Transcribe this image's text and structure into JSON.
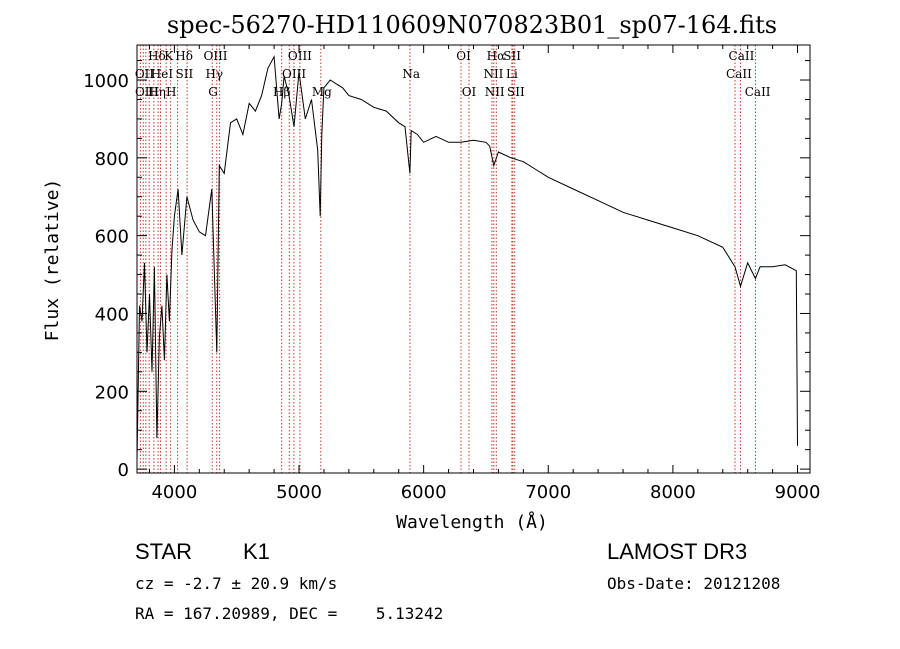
{
  "chart_data": {
    "type": "line",
    "title": "spec-56270-HD110609N070823B01_sp07-164.fits",
    "xlabel": "Wavelength (Å)",
    "ylabel": "Flux (relative)",
    "xlim": [
      3700,
      9100
    ],
    "ylim": [
      -10,
      1090
    ],
    "xticks": [
      4000,
      5000,
      6000,
      7000,
      8000,
      9000
    ],
    "yticks": [
      0,
      200,
      400,
      600,
      800,
      1000
    ],
    "grid": false,
    "series": [
      {
        "name": "flux",
        "x": [
          3700,
          3720,
          3740,
          3760,
          3780,
          3800,
          3820,
          3840,
          3860,
          3880,
          3900,
          3920,
          3940,
          3960,
          3980,
          4000,
          4030,
          4060,
          4100,
          4150,
          4200,
          4250,
          4300,
          4340,
          4360,
          4400,
          4450,
          4500,
          4550,
          4600,
          4650,
          4700,
          4750,
          4800,
          4840,
          4861,
          4880,
          4920,
          4960,
          5000,
          5050,
          5100,
          5150,
          5170,
          5183,
          5200,
          5250,
          5300,
          5350,
          5400,
          5500,
          5600,
          5700,
          5800,
          5850,
          5890,
          5900,
          5950,
          6000,
          6100,
          6200,
          6300,
          6400,
          6500,
          6530,
          6563,
          6600,
          6700,
          6800,
          6900,
          7000,
          7200,
          7400,
          7600,
          7800,
          8000,
          8200,
          8400,
          8498,
          8542,
          8600,
          8662,
          8700,
          8800,
          8900,
          8990,
          9000
        ],
        "y": [
          20,
          420,
          380,
          530,
          300,
          450,
          250,
          520,
          80,
          340,
          420,
          280,
          500,
          380,
          560,
          650,
          720,
          550,
          700,
          640,
          610,
          600,
          720,
          300,
          780,
          760,
          890,
          900,
          860,
          940,
          920,
          960,
          1030,
          1060,
          900,
          940,
          1010,
          960,
          880,
          1020,
          900,
          950,
          820,
          650,
          860,
          980,
          1000,
          990,
          980,
          960,
          950,
          930,
          920,
          890,
          880,
          760,
          870,
          860,
          840,
          855,
          840,
          840,
          845,
          840,
          830,
          780,
          815,
          800,
          790,
          770,
          750,
          720,
          690,
          660,
          640,
          620,
          600,
          570,
          520,
          470,
          530,
          490,
          520,
          520,
          525,
          510,
          60
        ]
      }
    ],
    "lines_top_row1": [
      "Hδ",
      "K",
      "Hδ",
      "OIII",
      "OIII",
      "OI",
      "Hα",
      "SII",
      "CaII"
    ],
    "lines_top_row2": [
      "OII",
      "HeI",
      "SII",
      "Hγ",
      "OIII",
      "Na",
      "NII",
      "Li",
      "CaII"
    ],
    "lines_top_row3": [
      "OIII",
      "Hη",
      "H",
      "G",
      "Hβ",
      "Mg",
      "OI",
      "NII",
      "SII",
      "CaII"
    ],
    "annotations": {
      "object": "STAR",
      "subclass": "K1",
      "survey": "LAMOST DR3",
      "cz": "cz = -2.7 ± 20.9 km/s",
      "obs_date": "Obs-Date: 20121208",
      "radec": "RA = 167.20989, DEC =    5.13242"
    }
  }
}
